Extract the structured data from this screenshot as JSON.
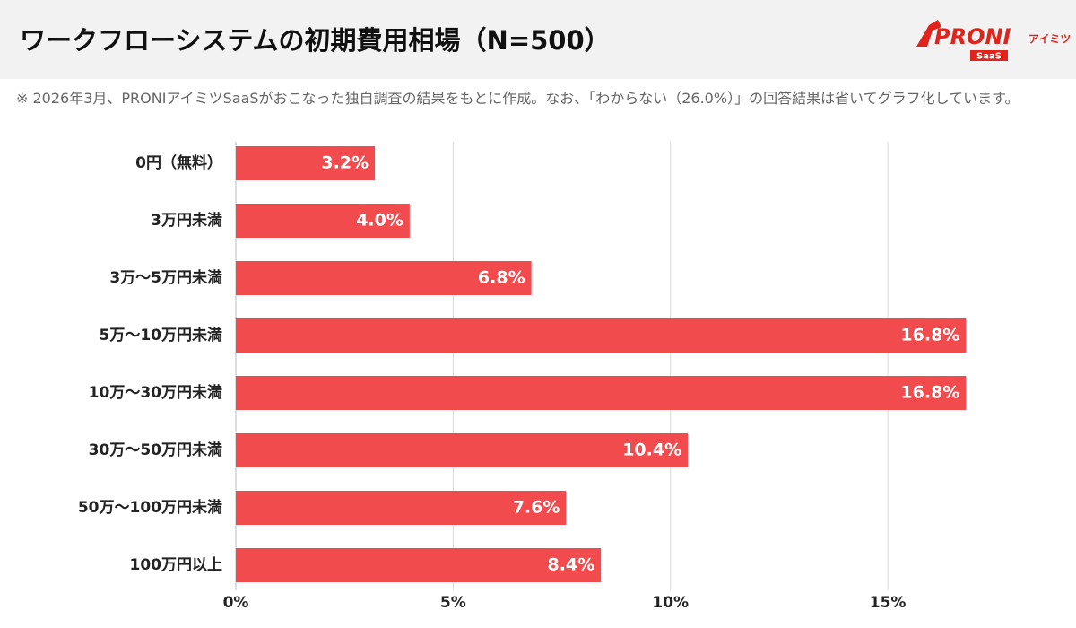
{
  "header": {
    "title": "ワークフローシステムの初期費用相場（N=500）",
    "logo": {
      "brand": "PRONI",
      "sub": "アイミツ",
      "tag": "SaaS"
    }
  },
  "note": "※ 2026年3月、PRONIアイミツSaaSがおこなった独自調査の結果をもとに作成。なお、「わからない（26.0%）」の回答結果は省いてグラフ化しています。",
  "chart_data": {
    "type": "bar",
    "orientation": "horizontal",
    "color": "#f24b4e",
    "grid": true,
    "categories": [
      "0円（無料）",
      "3万円未満",
      "3万〜5万円未満",
      "5万〜10万円未満",
      "10万〜30万円未満",
      "30万〜50万円未満",
      "50万〜100万円未満",
      "100万円以上"
    ],
    "values": [
      3.2,
      4.0,
      6.8,
      16.8,
      16.8,
      10.4,
      7.6,
      8.4
    ],
    "value_labels": [
      "3.2%",
      "4.0%",
      "6.8%",
      "16.8%",
      "16.8%",
      "10.4%",
      "7.6%",
      "8.4%"
    ],
    "xlim": [
      0,
      19
    ],
    "xticks": [
      {
        "value": 0,
        "label": "0%"
      },
      {
        "value": 5,
        "label": "5%"
      },
      {
        "value": 10,
        "label": "10%"
      },
      {
        "value": 15,
        "label": "15%"
      }
    ]
  }
}
